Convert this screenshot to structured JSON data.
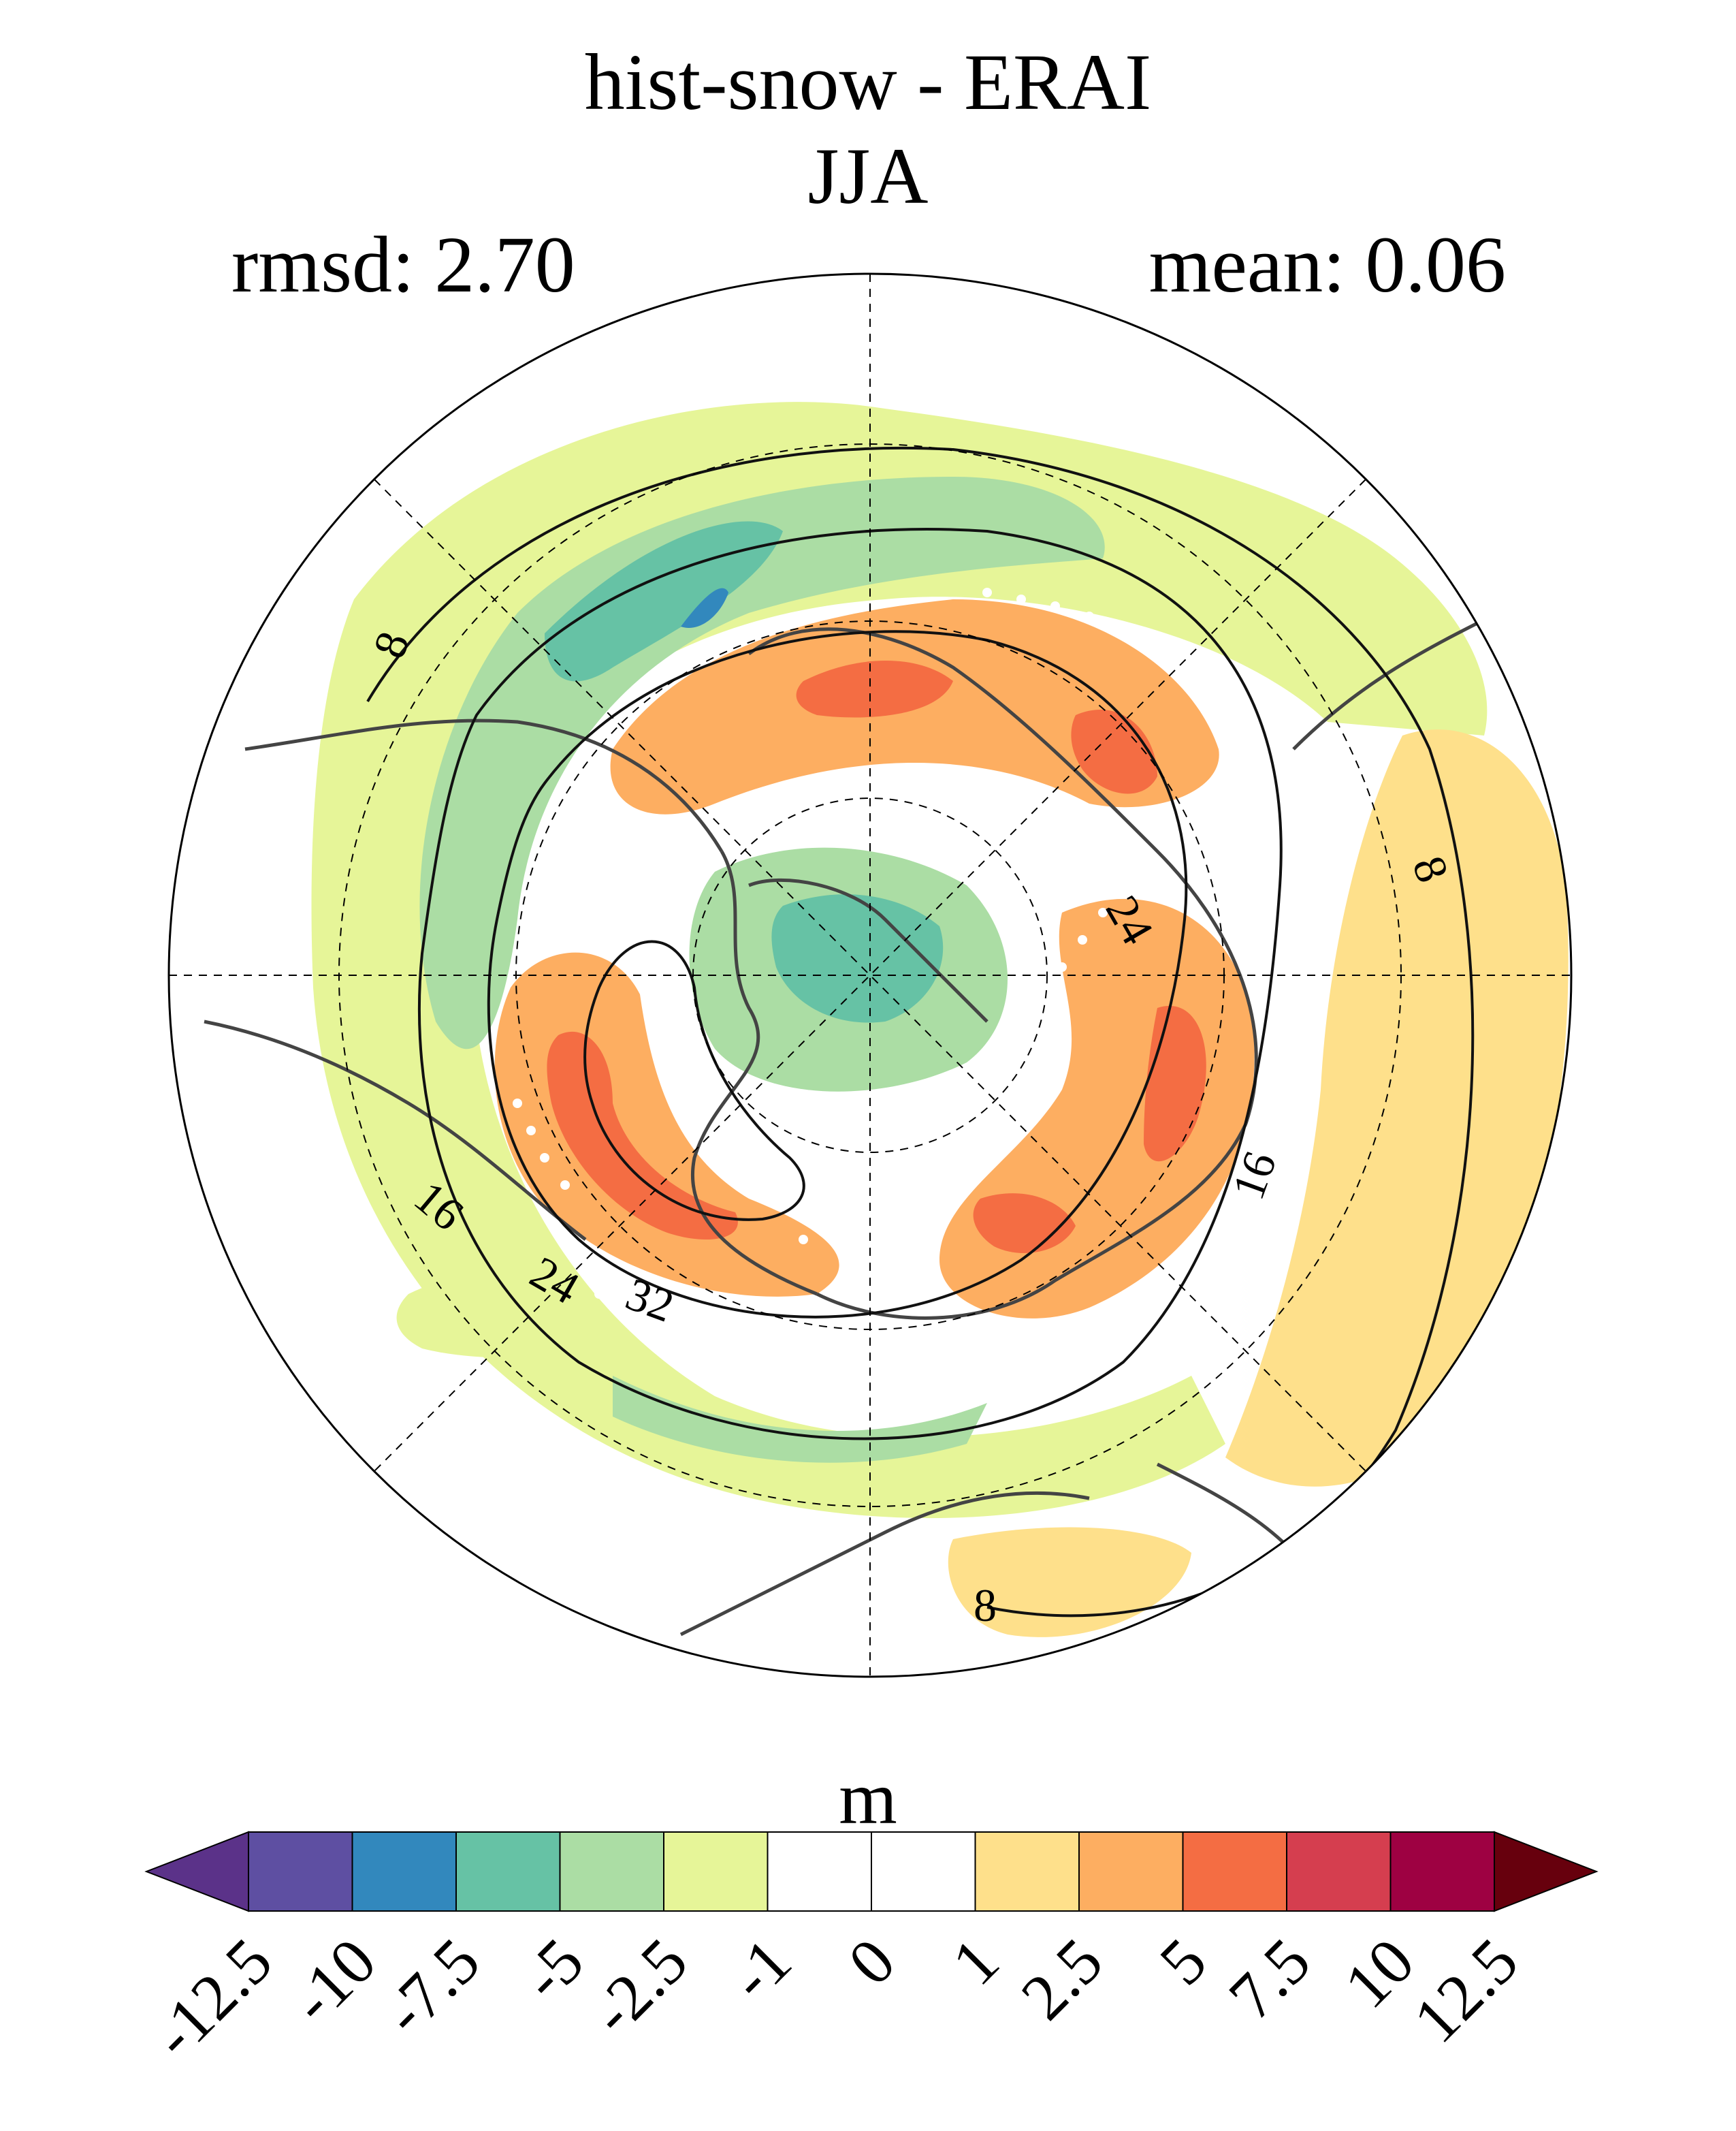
{
  "title": "hist-snow - ERAI",
  "season": "JJA",
  "stats": {
    "rmsd_label": "rmsd: 2.70",
    "mean_label": "mean: 0.06"
  },
  "colorbar": {
    "unit": "m",
    "levels": [
      "-12.5",
      "-10",
      "-7.5",
      "-5",
      "-2.5",
      "-1",
      "0",
      "1",
      "2.5",
      "5",
      "7.5",
      "10",
      "12.5"
    ],
    "colors": [
      "#5e4fa2",
      "#3288bd",
      "#66c2a5",
      "#abdda4",
      "#e6f598",
      "#ffffff",
      "#ffffff",
      "#fee08b",
      "#fdae61",
      "#f46d43",
      "#d53e4f",
      "#9e0142"
    ],
    "under_color": "#5b3289",
    "over_color": "#67000d"
  },
  "contour_labels": [
    "8",
    "8",
    "8",
    "16",
    "16",
    "24",
    "24",
    "32"
  ],
  "map": {
    "projection": "north-polar-stereographic",
    "graticule": "dashed",
    "coastlines": "dark-grey",
    "stippling": "white-dots"
  }
}
